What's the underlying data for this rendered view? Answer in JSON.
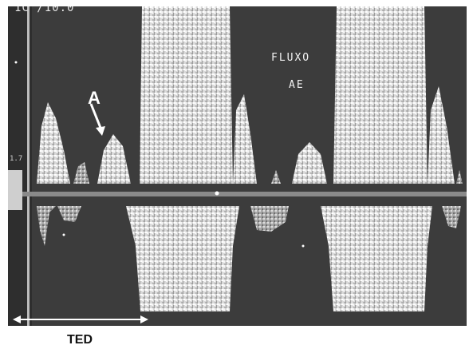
{
  "image": {
    "top_readout": "1C /10.0",
    "side_label": "1.7",
    "flow_label": "FLUXO",
    "flow_sub_label": "AE",
    "annotation_a": "A",
    "ted_label": "TED"
  },
  "colors": {
    "background": "#3c3c3c",
    "signal": "#e8e8e8",
    "baseline": "#8a8a8a",
    "annotation": "#ffffff"
  }
}
